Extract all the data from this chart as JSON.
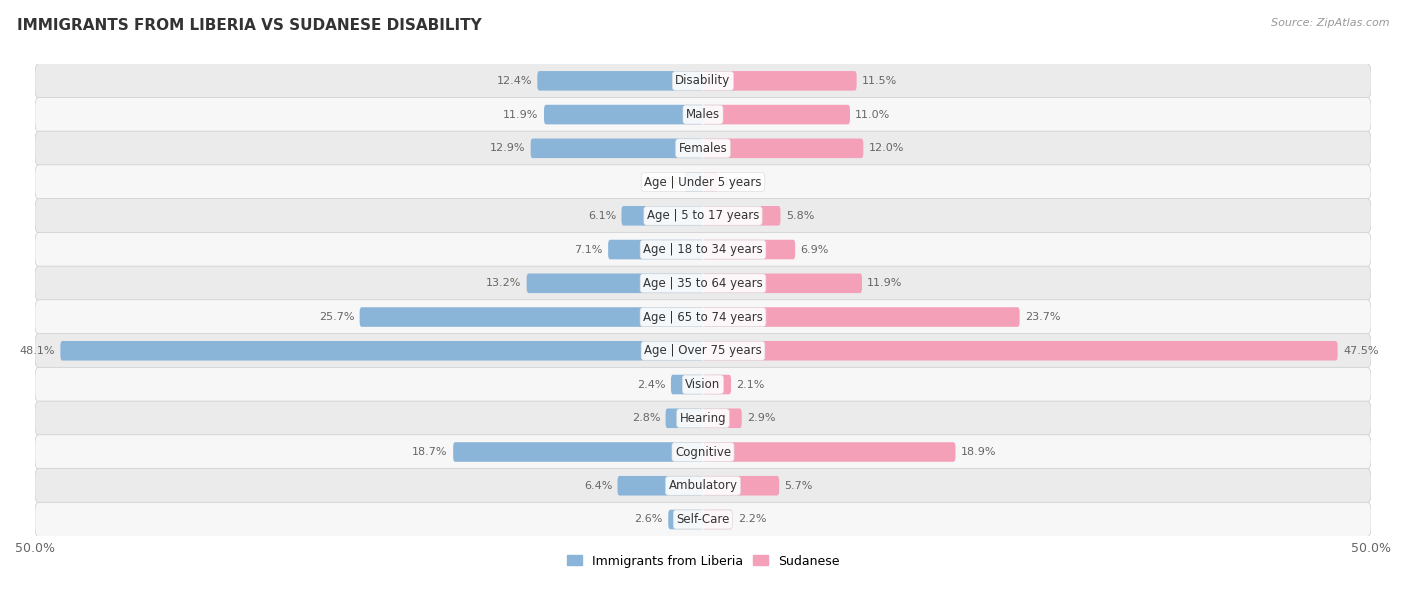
{
  "title": "IMMIGRANTS FROM LIBERIA VS SUDANESE DISABILITY",
  "source": "Source: ZipAtlas.com",
  "categories": [
    "Disability",
    "Males",
    "Females",
    "Age | Under 5 years",
    "Age | 5 to 17 years",
    "Age | 18 to 34 years",
    "Age | 35 to 64 years",
    "Age | 65 to 74 years",
    "Age | Over 75 years",
    "Vision",
    "Hearing",
    "Cognitive",
    "Ambulatory",
    "Self-Care"
  ],
  "liberia_values": [
    12.4,
    11.9,
    12.9,
    1.4,
    6.1,
    7.1,
    13.2,
    25.7,
    48.1,
    2.4,
    2.8,
    18.7,
    6.4,
    2.6
  ],
  "sudanese_values": [
    11.5,
    11.0,
    12.0,
    1.1,
    5.8,
    6.9,
    11.9,
    23.7,
    47.5,
    2.1,
    2.9,
    18.9,
    5.7,
    2.2
  ],
  "liberia_color": "#8ab4d8",
  "sudanese_color": "#f4a0b8",
  "liberia_label": "Immigrants from Liberia",
  "sudanese_label": "Sudanese",
  "axis_limit": 50.0,
  "bar_height": 0.58,
  "row_bg_colors": [
    "#ebebeb",
    "#f7f7f7"
  ],
  "title_fontsize": 11,
  "label_fontsize": 8.5,
  "value_fontsize": 8.0,
  "legend_fontsize": 9,
  "title_color": "#333333",
  "value_color": "#666666",
  "label_color": "#333333"
}
